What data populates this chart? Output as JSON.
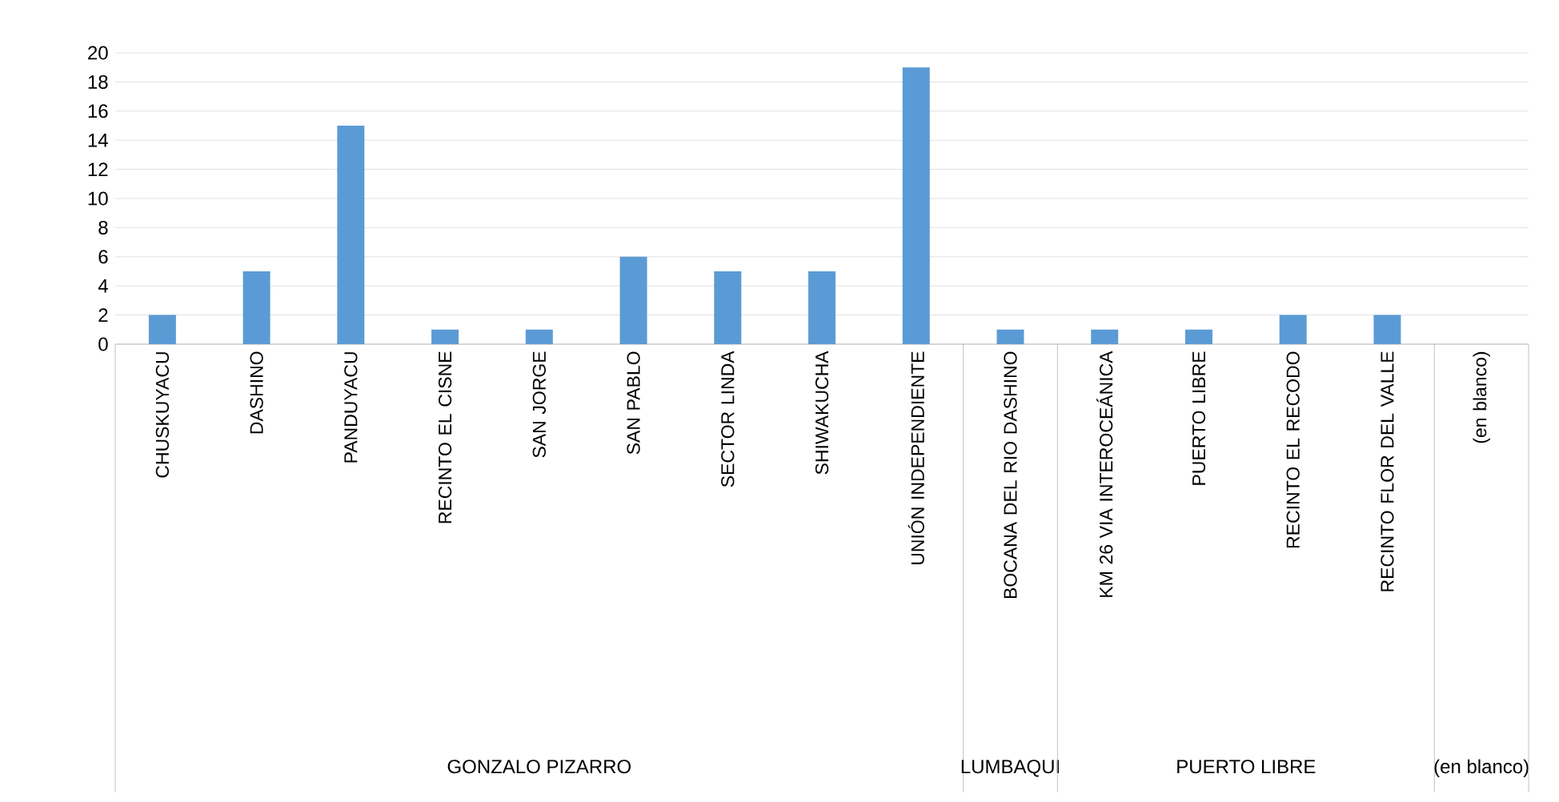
{
  "chart_data": {
    "type": "bar",
    "categories": [
      "CHUSKUYACU",
      "DASHINO",
      "PANDUYACU",
      "RECINTO EL CISNE",
      "SAN JORGE",
      "SAN PABLO",
      "SECTOR LINDA",
      "SHIWAKUCHA",
      "UNIÓN INDEPENDIENTE",
      "BOCANA DEL RIO DASHINO",
      "KM 26 VIA INTEROCEÁNICA",
      "PUERTO LIBRE",
      "RECINTO EL RECODO",
      "RECINTO FLOR DEL VALLE",
      "(en blanco)"
    ],
    "values": [
      2,
      5,
      15,
      1,
      1,
      6,
      5,
      5,
      19,
      1,
      1,
      1,
      2,
      2,
      null
    ],
    "color": "#5b9bd5",
    "annotations": [
      "GONZALO PIZARRO",
      "LUMBAQUI",
      "PUERTO LIBRE",
      "(en blanco)"
    ],
    "ylim": [
      0,
      20
    ],
    "yticks": [
      0,
      2,
      4,
      6,
      8,
      10,
      12,
      14,
      16,
      18,
      20
    ],
    "grid": "y"
  }
}
